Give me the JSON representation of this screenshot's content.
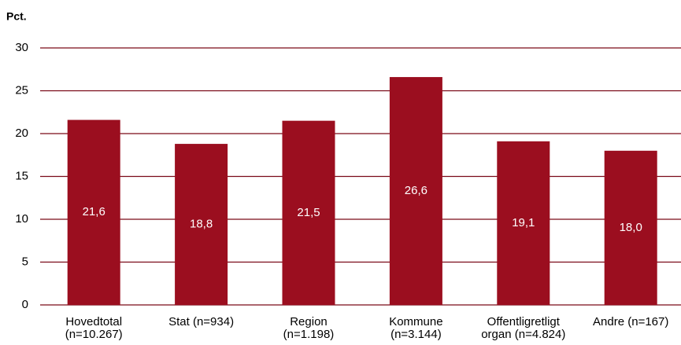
{
  "chart_data": {
    "type": "bar",
    "y_label": "Pct.",
    "categories": [
      "Hovedtotal\n(n=10.267)",
      "Stat (n=934)",
      "Region\n(n=1.198)",
      "Kommune\n(n=3.144)",
      "Offentligretligt\norgan (n=4.824)",
      "Andre (n=167)"
    ],
    "values": [
      21.6,
      18.8,
      21.5,
      26.6,
      19.1,
      18.0
    ],
    "value_labels": [
      "21,6",
      "18,8",
      "21,5",
      "26,6",
      "19,1",
      "18,0"
    ],
    "color": "#9b0e1f",
    "ylim": [
      0,
      30
    ],
    "yticks": [
      0,
      5,
      10,
      15,
      20,
      25,
      30
    ],
    "grid": true
  }
}
